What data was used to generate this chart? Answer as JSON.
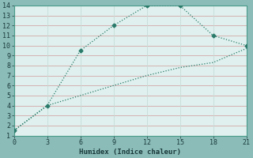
{
  "line1_x": [
    0,
    3,
    6,
    9,
    12,
    15,
    18,
    21
  ],
  "line1_y": [
    1.5,
    4,
    9.5,
    12,
    14,
    14,
    11,
    10
  ],
  "line2_x": [
    0,
    3,
    6,
    9,
    12,
    15,
    18,
    21
  ],
  "line2_y": [
    1.5,
    4,
    5,
    6,
    7,
    7.8,
    8.3,
    9.7
  ],
  "line_color": "#2a7a6a",
  "bg_color": "#8bbcb8",
  "plot_bg_color": "#dff0ee",
  "grid_color_h": "#d4a8a8",
  "grid_color_v": "#c8dcd8",
  "xlabel": "Humidex (Indice chaleur)",
  "xlim": [
    0,
    21
  ],
  "ylim": [
    1,
    14
  ],
  "xticks": [
    0,
    3,
    6,
    9,
    12,
    15,
    18,
    21
  ],
  "yticks": [
    1,
    2,
    3,
    4,
    5,
    6,
    7,
    8,
    9,
    10,
    11,
    12,
    13,
    14
  ],
  "label_fontsize": 6.5,
  "tick_fontsize": 6.0
}
